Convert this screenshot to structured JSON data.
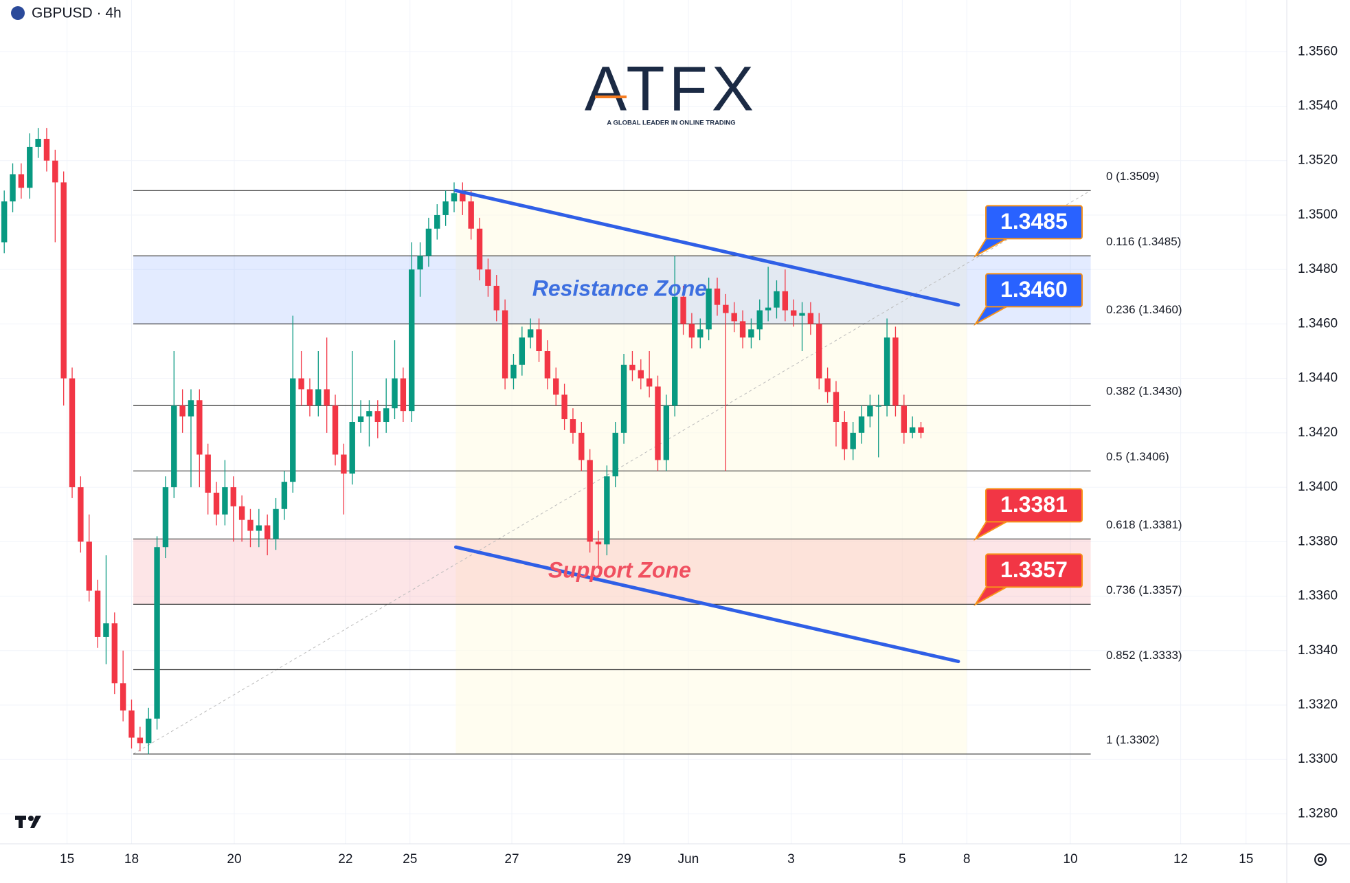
{
  "header": {
    "symbol": "GBPUSD · 4h"
  },
  "logo": {
    "name": "ATFX",
    "tagline": "A GLOBAL LEADER IN ONLINE TRADING"
  },
  "chart_data": {
    "type": "candlestick",
    "up_color": "#089981",
    "down_color": "#f23645",
    "grid": true,
    "open": [
      1.349,
      1.3505,
      1.3515,
      1.351,
      1.3525,
      1.3528,
      1.352,
      1.3512,
      1.344,
      1.34,
      1.338,
      1.3362,
      1.3345,
      1.335,
      1.3328,
      1.3318,
      1.3308,
      1.3306,
      1.3315,
      1.3378,
      1.34,
      1.343,
      1.3426,
      1.3432,
      1.3412,
      1.3398,
      1.339,
      1.34,
      1.3393,
      1.3388,
      1.3384,
      1.3386,
      1.3381,
      1.3392,
      1.3402,
      1.344,
      1.3436,
      1.343,
      1.3436,
      1.343,
      1.3412,
      1.3405,
      1.3424,
      1.3426,
      1.3428,
      1.3424,
      1.3429,
      1.344,
      1.3428,
      1.348,
      1.3485,
      1.3495,
      1.35,
      1.3505,
      1.3508,
      1.3505,
      1.3495,
      1.348,
      1.3474,
      1.3465,
      1.344,
      1.3445,
      1.3455,
      1.3458,
      1.345,
      1.344,
      1.3434,
      1.3425,
      1.342,
      1.341,
      1.338,
      1.3379,
      1.3404,
      1.342,
      1.3445,
      1.3443,
      1.344,
      1.3437,
      1.341,
      1.343,
      1.347,
      1.346,
      1.3455,
      1.3458,
      1.3473,
      1.3467,
      1.3464,
      1.3461,
      1.3455,
      1.3458,
      1.3465,
      1.3466,
      1.3472,
      1.3465,
      1.3463,
      1.3464,
      1.346,
      1.344,
      1.3435,
      1.3424,
      1.3414,
      1.342,
      1.3426,
      1.343,
      1.343,
      1.3455,
      1.343,
      1.342,
      1.3422
    ],
    "high": [
      1.3509,
      1.3519,
      1.3519,
      1.353,
      1.3532,
      1.3532,
      1.3524,
      1.3516,
      1.3444,
      1.3404,
      1.339,
      1.3366,
      1.3375,
      1.3354,
      1.334,
      1.3322,
      1.3312,
      1.3319,
      1.3382,
      1.3404,
      1.345,
      1.3436,
      1.3436,
      1.3436,
      1.3416,
      1.3402,
      1.341,
      1.3404,
      1.3397,
      1.3392,
      1.3392,
      1.339,
      1.3396,
      1.3406,
      1.3463,
      1.345,
      1.344,
      1.345,
      1.3455,
      1.3434,
      1.3416,
      1.345,
      1.3432,
      1.3432,
      1.3432,
      1.344,
      1.3454,
      1.3444,
      1.349,
      1.349,
      1.3499,
      1.3504,
      1.3509,
      1.3512,
      1.3512,
      1.3509,
      1.3499,
      1.3484,
      1.3478,
      1.3469,
      1.3449,
      1.3459,
      1.3462,
      1.3462,
      1.3454,
      1.3444,
      1.3438,
      1.3429,
      1.3424,
      1.3414,
      1.3384,
      1.3408,
      1.3424,
      1.3449,
      1.345,
      1.3447,
      1.345,
      1.3441,
      1.3434,
      1.3485,
      1.3474,
      1.3464,
      1.3462,
      1.3477,
      1.3477,
      1.3471,
      1.3468,
      1.3465,
      1.3462,
      1.3469,
      1.3481,
      1.3476,
      1.348,
      1.3469,
      1.3468,
      1.3468,
      1.3464,
      1.3444,
      1.3439,
      1.3428,
      1.3424,
      1.343,
      1.3434,
      1.3434,
      1.3462,
      1.3459,
      1.3434,
      1.3426,
      1.3424
    ],
    "low": [
      1.3486,
      1.3501,
      1.3506,
      1.3506,
      1.3521,
      1.3516,
      1.349,
      1.343,
      1.3396,
      1.3376,
      1.3358,
      1.3341,
      1.3335,
      1.3324,
      1.3314,
      1.3304,
      1.3303,
      1.3302,
      1.3311,
      1.3374,
      1.3396,
      1.342,
      1.34,
      1.34,
      1.339,
      1.3386,
      1.3386,
      1.338,
      1.338,
      1.3378,
      1.3378,
      1.3375,
      1.3377,
      1.3388,
      1.3398,
      1.343,
      1.3426,
      1.3426,
      1.342,
      1.3408,
      1.339,
      1.3401,
      1.342,
      1.3415,
      1.3418,
      1.342,
      1.3425,
      1.3424,
      1.3424,
      1.347,
      1.3481,
      1.3491,
      1.3496,
      1.3501,
      1.35,
      1.3491,
      1.3476,
      1.347,
      1.3461,
      1.3436,
      1.3436,
      1.3441,
      1.3451,
      1.3446,
      1.3436,
      1.343,
      1.3421,
      1.3416,
      1.3406,
      1.3376,
      1.337,
      1.3375,
      1.34,
      1.3416,
      1.3439,
      1.3436,
      1.3433,
      1.3406,
      1.3406,
      1.3426,
      1.3456,
      1.3451,
      1.3451,
      1.3454,
      1.3463,
      1.3406,
      1.3457,
      1.3451,
      1.3451,
      1.3454,
      1.3461,
      1.3462,
      1.3461,
      1.3459,
      1.345,
      1.3456,
      1.3436,
      1.3431,
      1.3415,
      1.341,
      1.341,
      1.3416,
      1.3422,
      1.3411,
      1.3426,
      1.3426,
      1.3416,
      1.3418,
      1.3418
    ],
    "close": [
      1.3505,
      1.3515,
      1.351,
      1.3525,
      1.3528,
      1.352,
      1.3512,
      1.344,
      1.34,
      1.338,
      1.3362,
      1.3345,
      1.335,
      1.3328,
      1.3318,
      1.3308,
      1.3306,
      1.3315,
      1.3378,
      1.34,
      1.343,
      1.3426,
      1.3432,
      1.3412,
      1.3398,
      1.339,
      1.34,
      1.3393,
      1.3388,
      1.3384,
      1.3386,
      1.3381,
      1.3392,
      1.3402,
      1.344,
      1.3436,
      1.343,
      1.3436,
      1.343,
      1.3412,
      1.3405,
      1.3424,
      1.3426,
      1.3428,
      1.3424,
      1.3429,
      1.344,
      1.3428,
      1.348,
      1.3485,
      1.3495,
      1.35,
      1.3505,
      1.3508,
      1.3505,
      1.3495,
      1.348,
      1.3474,
      1.3465,
      1.344,
      1.3445,
      1.3455,
      1.3458,
      1.345,
      1.344,
      1.3434,
      1.3425,
      1.342,
      1.341,
      1.338,
      1.3379,
      1.3404,
      1.342,
      1.3445,
      1.3443,
      1.344,
      1.3437,
      1.341,
      1.343,
      1.347,
      1.346,
      1.3455,
      1.3458,
      1.3473,
      1.3467,
      1.3464,
      1.3461,
      1.3455,
      1.3458,
      1.3465,
      1.3466,
      1.3472,
      1.3465,
      1.3463,
      1.3464,
      1.346,
      1.344,
      1.3435,
      1.3424,
      1.3414,
      1.342,
      1.3426,
      1.343,
      1.343,
      1.3455,
      1.343,
      1.342,
      1.3422,
      1.342
    ],
    "xlim": [
      -0.5,
      151.1
    ],
    "xticks": [
      {
        "value": 7.4,
        "label": "15"
      },
      {
        "value": 15.0,
        "label": "18"
      },
      {
        "value": 27.1,
        "label": "20"
      },
      {
        "value": 40.2,
        "label": "22"
      },
      {
        "value": 47.8,
        "label": "25"
      },
      {
        "value": 59.8,
        "label": "27"
      },
      {
        "value": 73.0,
        "label": "29"
      },
      {
        "value": 80.6,
        "label": "Jun"
      },
      {
        "value": 92.7,
        "label": "3"
      },
      {
        "value": 105.8,
        "label": "5"
      },
      {
        "value": 113.4,
        "label": "8"
      },
      {
        "value": 125.6,
        "label": "10"
      },
      {
        "value": 138.6,
        "label": "12"
      },
      {
        "value": 146.3,
        "label": "15"
      }
    ],
    "ylim": [
      1.3269,
      1.3579
    ],
    "yticks": [
      {
        "value": 1.328,
        "label": "1.3280"
      },
      {
        "value": 1.33,
        "label": "1.3300"
      },
      {
        "value": 1.332,
        "label": "1.3320"
      },
      {
        "value": 1.334,
        "label": "1.3340"
      },
      {
        "value": 1.336,
        "label": "1.3360"
      },
      {
        "value": 1.338,
        "label": "1.3380"
      },
      {
        "value": 1.34,
        "label": "1.3400"
      },
      {
        "value": 1.342,
        "label": "1.3420"
      },
      {
        "value": 1.344,
        "label": "1.3440"
      },
      {
        "value": 1.346,
        "label": "1.3460"
      },
      {
        "value": 1.348,
        "label": "1.3480"
      },
      {
        "value": 1.35,
        "label": "1.3500"
      },
      {
        "value": 1.352,
        "label": "1.3520"
      },
      {
        "value": 1.354,
        "label": "1.3540"
      },
      {
        "value": 1.356,
        "label": "1.3560"
      }
    ],
    "fib": {
      "from": {
        "x": 15.2,
        "price": 1.3302
      },
      "to": {
        "x": 128,
        "price": 1.3509
      },
      "levels": [
        {
          "value": 1.3509,
          "label": "0 (1.3509)"
        },
        {
          "value": 1.3485,
          "label": "0.116 (1.3485)"
        },
        {
          "value": 1.346,
          "label": "0.236 (1.3460)"
        },
        {
          "value": 1.343,
          "label": "0.382 (1.3430)"
        },
        {
          "value": 1.3406,
          "label": "0.5 (1.3406)"
        },
        {
          "value": 1.3381,
          "label": "0.618 (1.3381)"
        },
        {
          "value": 1.3357,
          "label": "0.736 (1.3357)"
        },
        {
          "value": 1.3333,
          "label": "0.852 (1.3333)"
        },
        {
          "value": 1.3302,
          "label": "1 (1.3302)"
        }
      ]
    },
    "zones": [
      {
        "label": "Resistance Zone",
        "from": 1.346,
        "to": 1.3485,
        "color": "#2962ff",
        "text_color": "#3d6fe0"
      },
      {
        "label": "Support Zone",
        "from": 1.3357,
        "to": 1.3381,
        "color": "#f23645",
        "text_color": "#f05060"
      }
    ],
    "trendlines": [
      {
        "x1": 53.2,
        "y1": 1.3509,
        "x2": 112.4,
        "y2": 1.3467,
        "color": "#2f5fe6"
      },
      {
        "x1": 53.2,
        "y1": 1.3378,
        "x2": 112.4,
        "y2": 1.3336,
        "color": "#2f5fe6"
      }
    ],
    "price_labels": [
      {
        "value": 1.3485,
        "label": "1.3485",
        "color": "#2962ff"
      },
      {
        "value": 1.346,
        "label": "1.3460",
        "color": "#2962ff"
      },
      {
        "value": 1.3381,
        "label": "1.3381",
        "color": "#f23645"
      },
      {
        "value": 1.3357,
        "label": "1.3357",
        "color": "#f23645"
      }
    ]
  }
}
